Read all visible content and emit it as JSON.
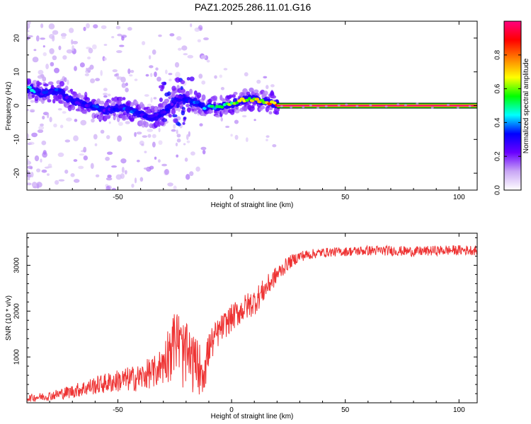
{
  "title": "PAZ1.2025.286.11.01.G16",
  "chart_data": [
    {
      "type": "heatmap",
      "name": "spectrogram",
      "xlabel": "Height of straight line (km)",
      "ylabel": "Frequency (Hz)",
      "xlim": [
        -90,
        108
      ],
      "ylim": [
        -25,
        25
      ],
      "xticks": [
        -50,
        0,
        50,
        100
      ],
      "yticks": [
        -20,
        -10,
        0,
        10,
        20
      ],
      "colorbar": {
        "label": "Normalized spectral amplitude",
        "range": [
          0,
          1
        ],
        "ticks": [
          "0.0",
          "0.2",
          "0.4",
          "0.6",
          "0.8"
        ],
        "tick_values": [
          0,
          0.2,
          0.4,
          0.6,
          0.8
        ],
        "colors": [
          "#ffffff",
          "#c9a6f5",
          "#6a00ff",
          "#0000ff",
          "#00ffff",
          "#00ff00",
          "#ffff00",
          "#ff8000",
          "#ff0000",
          "#ff0080"
        ]
      },
      "ridge": {
        "x": [
          -88,
          -84,
          -80,
          -76,
          -72,
          -68,
          -64,
          -60,
          -56,
          -52,
          -48,
          -44,
          -40,
          -36,
          -32,
          -28,
          -24,
          -20,
          -16,
          -12,
          -8,
          -4,
          0,
          4,
          8,
          12,
          16,
          20
        ],
        "freq": [
          5,
          3.5,
          4,
          4.5,
          2,
          1,
          0.5,
          -0.5,
          -1.5,
          -1,
          -0.5,
          -1.5,
          -2.5,
          -3.5,
          -3,
          -1,
          2.5,
          2,
          1,
          -0.5,
          -0.5,
          0,
          0.5,
          1.5,
          2,
          1.5,
          1,
          0.5
        ],
        "amplitude": [
          0.45,
          0.3,
          0.35,
          0.35,
          0.3,
          0.3,
          0.3,
          0.35,
          0.3,
          0.3,
          0.35,
          0.35,
          0.3,
          0.35,
          0.3,
          0.3,
          0.25,
          0.3,
          0.4,
          0.4,
          0.5,
          0.55,
          0.6,
          0.65,
          0.65,
          0.7,
          0.75,
          0.95
        ]
      },
      "tone": {
        "x_start": 20,
        "x_end": 108,
        "freq": 0,
        "amplitude": 1.0
      }
    },
    {
      "type": "line",
      "name": "snr",
      "xlabel": "Height of straight line (km)",
      "ylabel": "SNR (10 * v/v)",
      "xlim": [
        -90,
        108
      ],
      "ylim": [
        0,
        3700
      ],
      "xticks": [
        -50,
        0,
        50,
        100
      ],
      "yticks": [
        1000,
        2000,
        3000
      ],
      "color": "#ee3333",
      "series": [
        {
          "name": "SNR",
          "x": [
            -90,
            -80,
            -70,
            -60,
            -50,
            -40,
            -35,
            -30,
            -27,
            -24,
            -22,
            -20,
            -18,
            -15,
            -12,
            -10,
            -5,
            0,
            5,
            10,
            15,
            20,
            25,
            30,
            40,
            50,
            60,
            70,
            80,
            90,
            100,
            108
          ],
          "y": [
            100,
            150,
            250,
            380,
            480,
            550,
            680,
            900,
            1300,
            1500,
            1200,
            1100,
            1000,
            900,
            750,
            1200,
            1600,
            1850,
            2050,
            2200,
            2500,
            2800,
            3050,
            3200,
            3280,
            3300,
            3320,
            3320,
            3300,
            3320,
            3330,
            3330
          ],
          "noise": [
            80,
            100,
            150,
            200,
            250,
            300,
            350,
            450,
            700,
            750,
            750,
            800,
            700,
            600,
            500,
            400,
            300,
            300,
            300,
            300,
            250,
            200,
            150,
            120,
            100,
            100,
            110,
            110,
            110,
            110,
            110,
            110
          ]
        }
      ]
    }
  ]
}
